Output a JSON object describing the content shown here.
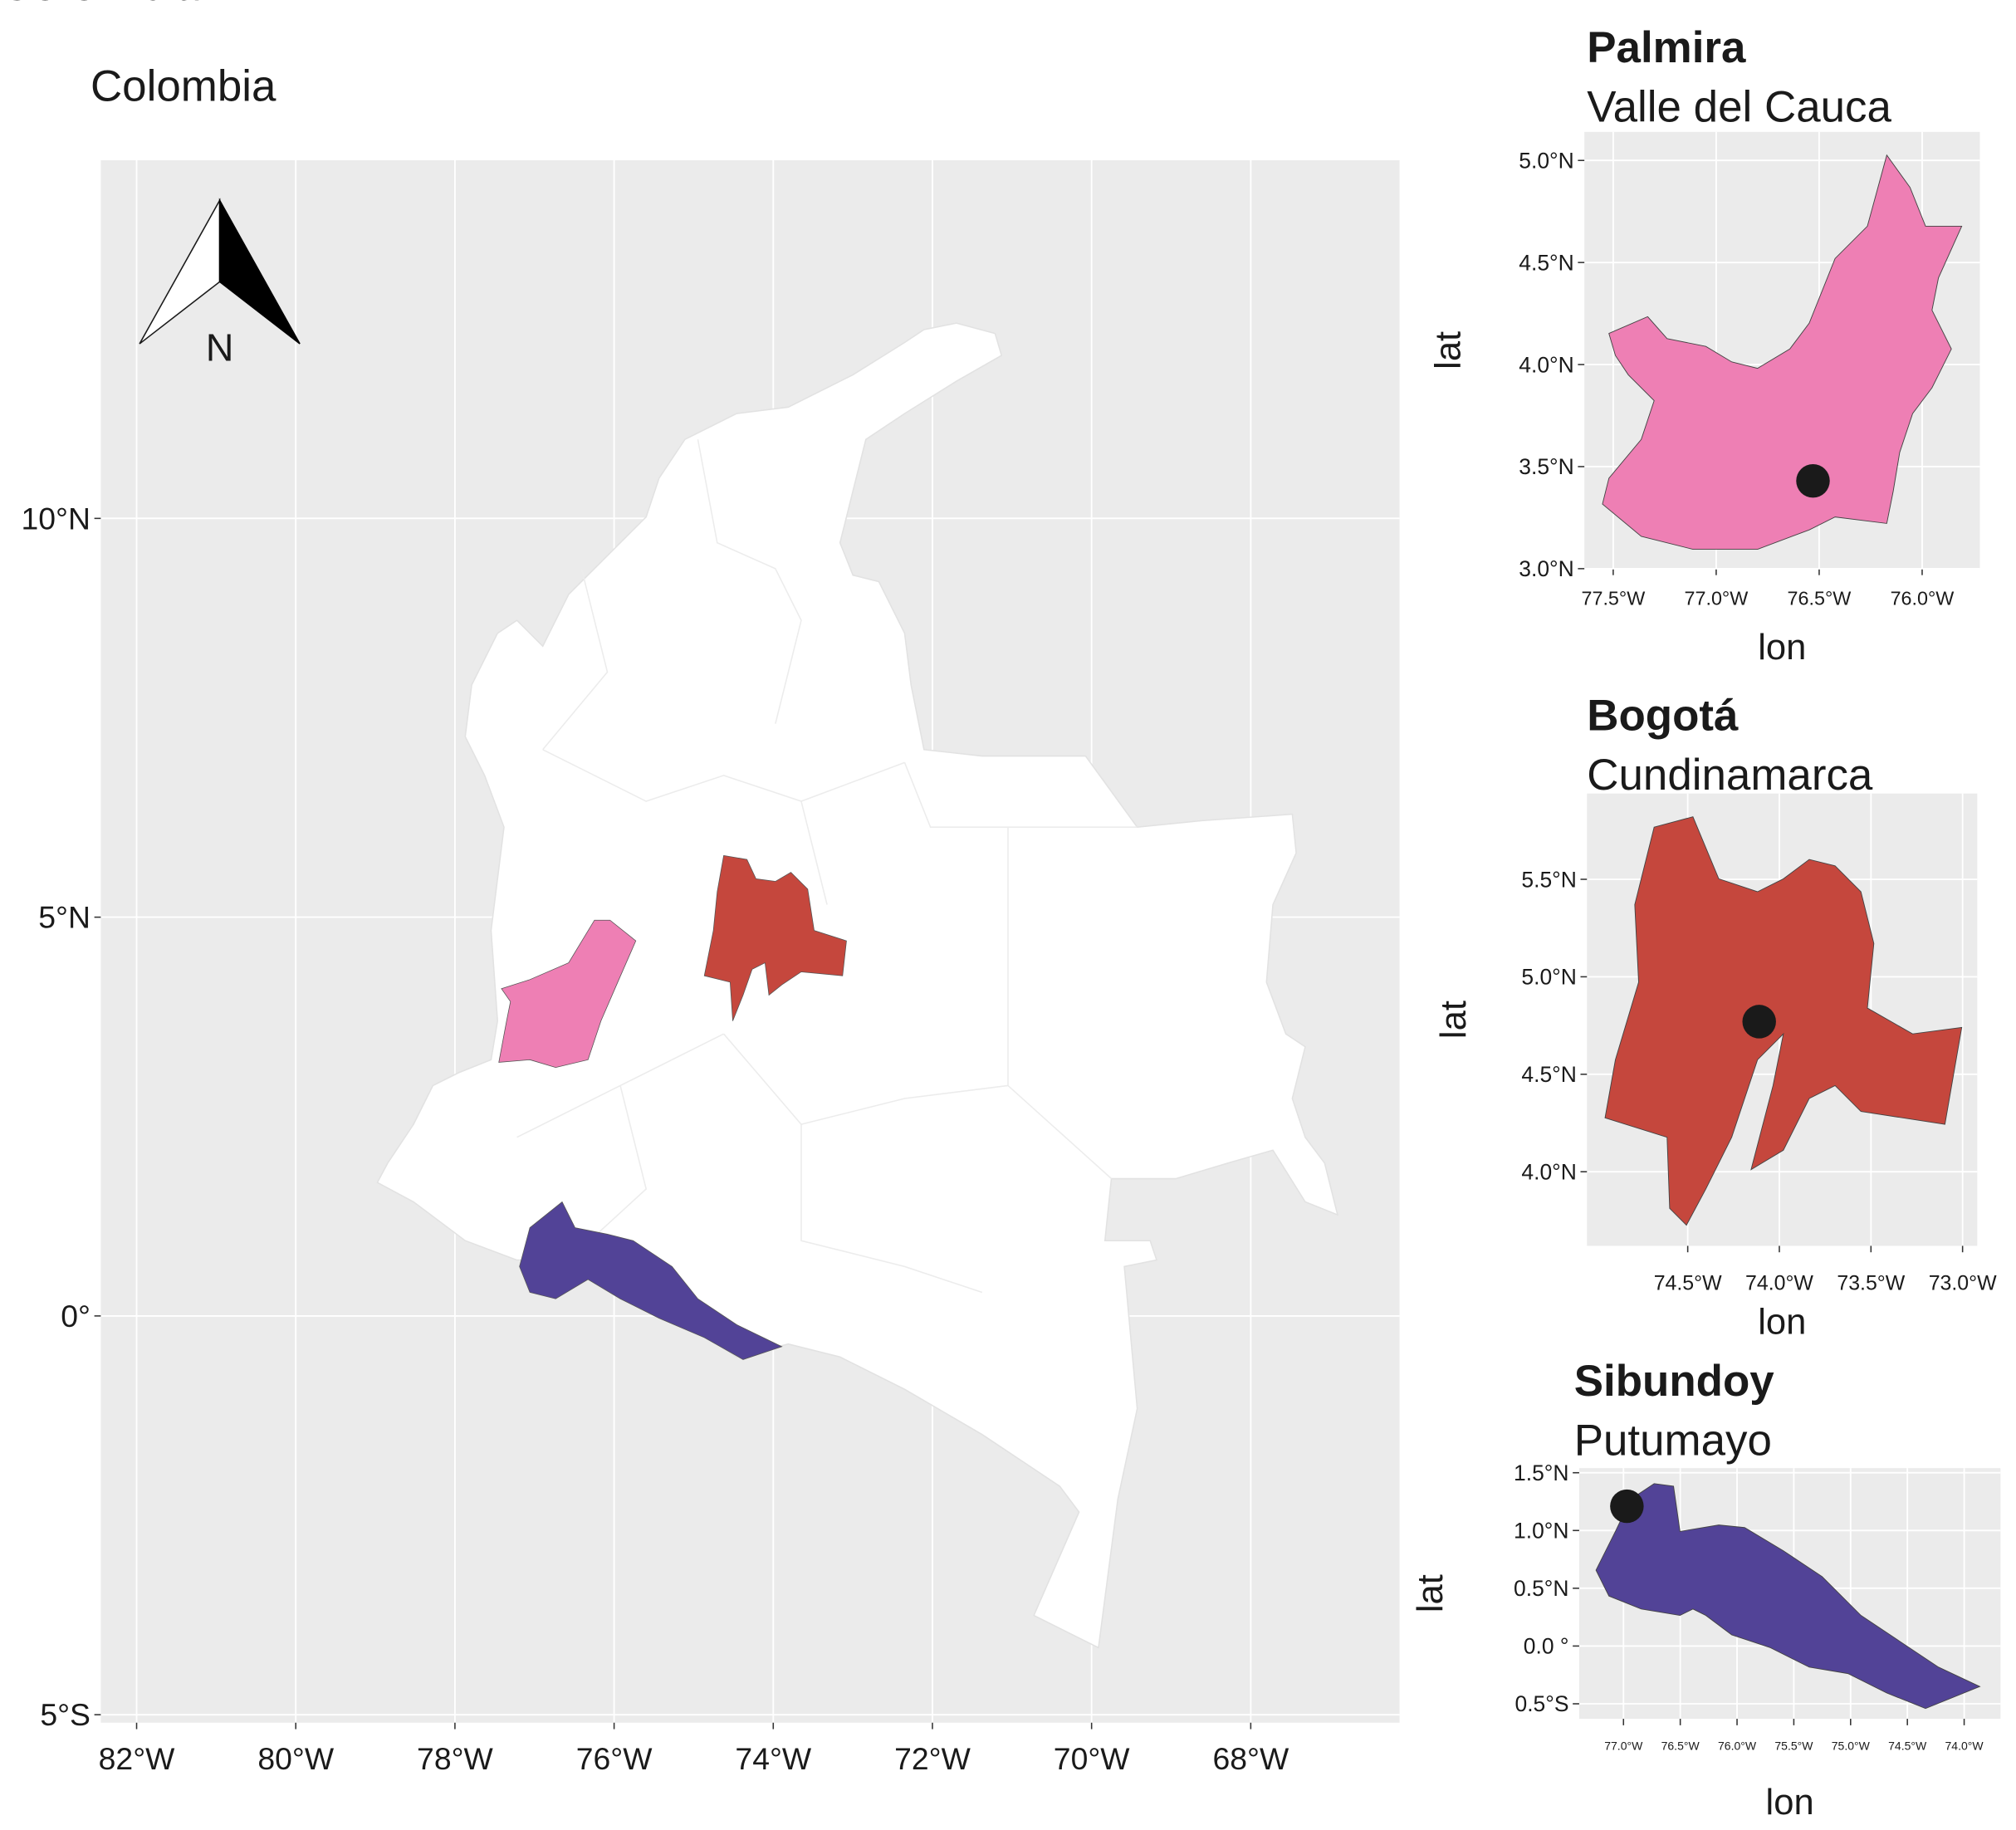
{
  "main": {
    "title": "Colombia",
    "north_arrow": "N",
    "grid": true,
    "xlim": [
      -82.45,
      -66.13
    ],
    "ylim": [
      -5.1,
      14.49
    ],
    "xticks": [
      {
        "value": -82,
        "label": "82°W"
      },
      {
        "value": -80,
        "label": "80°W"
      },
      {
        "value": -78,
        "label": "78°W"
      },
      {
        "value": -76,
        "label": "76°W"
      },
      {
        "value": -74,
        "label": "74°W"
      },
      {
        "value": -72,
        "label": "72°W"
      },
      {
        "value": -70,
        "label": "70°W"
      },
      {
        "value": -68,
        "label": "68°W"
      }
    ],
    "yticks": [
      {
        "value": -5,
        "label": "5°S"
      },
      {
        "value": 0,
        "label": "0°"
      },
      {
        "value": 5,
        "label": "5°N"
      },
      {
        "value": 10,
        "label": "10°N"
      }
    ]
  },
  "insets": [
    {
      "title": "Palmira",
      "subtitle": "Valle del Cauca",
      "color": "#ee7fb4",
      "xlabel": "lon",
      "ylabel": "lat",
      "xlim": [
        -77.64,
        -75.72
      ],
      "ylim": [
        3.0,
        5.14
      ],
      "xticks": [
        {
          "value": -77.5,
          "label": "77.5°W"
        },
        {
          "value": -77.0,
          "label": "77.0°W"
        },
        {
          "value": -76.5,
          "label": "76.5°W"
        },
        {
          "value": -76.0,
          "label": "76.0°W"
        }
      ],
      "yticks": [
        {
          "value": 3.0,
          "label": "3.0°N"
        },
        {
          "value": 3.5,
          "label": "3.5°N"
        },
        {
          "value": 4.0,
          "label": "4.0°N"
        },
        {
          "value": 4.5,
          "label": "4.5°N"
        },
        {
          "value": 5.0,
          "label": "5.0°N"
        }
      ],
      "point": {
        "lon": -76.53,
        "lat": 3.43
      }
    },
    {
      "title": "Bogotá",
      "subtitle": "Cundinamarca",
      "color": "#c5473d",
      "xlabel": "lon",
      "ylabel": "lat",
      "xlim": [
        -75.05,
        -72.92
      ],
      "ylim": [
        3.62,
        5.94
      ],
      "xticks": [
        {
          "value": -74.5,
          "label": "74.5°W"
        },
        {
          "value": -74.0,
          "label": "74.0°W"
        },
        {
          "value": -73.5,
          "label": "73.5°W"
        },
        {
          "value": -73.0,
          "label": "73.0°W"
        }
      ],
      "yticks": [
        {
          "value": 4.0,
          "label": "4.0°N"
        },
        {
          "value": 4.5,
          "label": "4.5°N"
        },
        {
          "value": 5.0,
          "label": "5.0°N"
        },
        {
          "value": 5.5,
          "label": "5.5°N"
        }
      ],
      "point": {
        "lon": -74.11,
        "lat": 4.77
      }
    },
    {
      "title": "Sibundoy",
      "subtitle": "Putumayo",
      "color": "#524397",
      "xlabel": "lon",
      "ylabel": "lat",
      "xlim": [
        -77.39,
        -73.68
      ],
      "ylim": [
        -0.63,
        1.54
      ],
      "xticks": [
        {
          "value": -77.0,
          "label": "77.0°W"
        },
        {
          "value": -76.5,
          "label": "76.5°W"
        },
        {
          "value": -76.0,
          "label": "76.0°W"
        },
        {
          "value": -75.5,
          "label": "75.5°W"
        },
        {
          "value": -75.0,
          "label": "75.0°W"
        },
        {
          "value": -74.5,
          "label": "74.5°W"
        },
        {
          "value": -74.0,
          "label": "74.0°W"
        }
      ],
      "yticks": [
        {
          "value": -0.5,
          "label": "0.5°S"
        },
        {
          "value": 0.0,
          "label": "0.0 °"
        },
        {
          "value": 0.5,
          "label": "0.5°N"
        },
        {
          "value": 1.0,
          "label": "1.0°N"
        },
        {
          "value": 1.5,
          "label": "1.5°N"
        }
      ],
      "point": {
        "lon": -76.97,
        "lat": 1.21
      }
    }
  ]
}
